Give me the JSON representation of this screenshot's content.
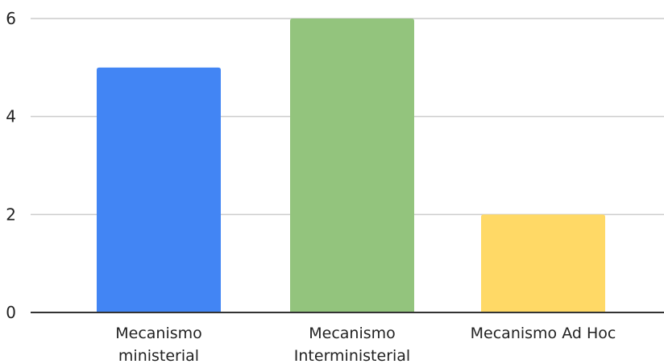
{
  "chart_data": {
    "type": "bar",
    "title": "",
    "xlabel": "",
    "ylabel": "",
    "categories": [
      [
        "Mecanismo",
        "ministerial"
      ],
      [
        "Mecanismo",
        "Interministerial"
      ],
      [
        "Mecanismo Ad Hoc"
      ]
    ],
    "values": [
      5,
      6,
      2
    ],
    "colors": [
      "#4285f4",
      "#93c47d",
      "#ffd966"
    ],
    "ylim": [
      0,
      6
    ],
    "yticks": [
      0,
      2,
      4,
      6
    ],
    "grid": true,
    "legend": "none"
  }
}
